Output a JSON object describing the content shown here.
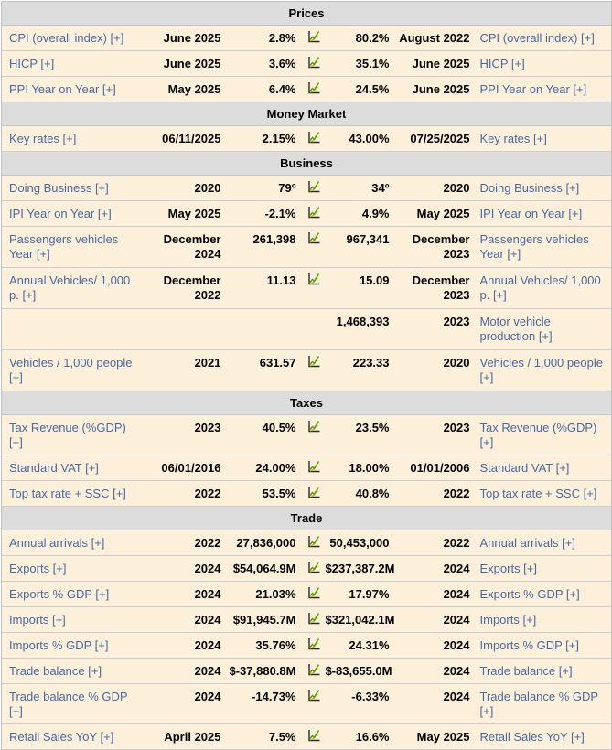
{
  "meta": {
    "columns": [
      "metric-left",
      "date-left",
      "value-left",
      "chart-icon",
      "value-right",
      "date-right",
      "metric-right"
    ],
    "colors": {
      "row_background": "#fcf0da",
      "section_background": "#dcdcdc",
      "border": "#c8c8c8",
      "link": "#4a68a1",
      "icon_axis": "#2b2b2b",
      "icon_line_green": "#55a018",
      "icon_line_yellow": "#d2be2a"
    },
    "chart_icon": "line-chart-icon"
  },
  "table": {
    "sections": [
      {
        "title": "Prices",
        "rows": [
          {
            "label_left": "CPI (overall index) [+]",
            "date_left": "June 2025",
            "value_left": "2.8%",
            "icon": true,
            "value_right": "80.2%",
            "date_right": "August 2022",
            "label_right": "CPI (overall index) [+]"
          },
          {
            "label_left": "HICP [+]",
            "date_left": "June 2025",
            "value_left": "3.6%",
            "icon": true,
            "value_right": "35.1%",
            "date_right": "June 2025",
            "label_right": "HICP [+]"
          },
          {
            "label_left": "PPI Year on Year [+]",
            "date_left": "May 2025",
            "value_left": "6.4%",
            "icon": true,
            "value_right": "24.5%",
            "date_right": "June 2025",
            "label_right": "PPI Year on Year [+]"
          }
        ]
      },
      {
        "title": "Money Market",
        "rows": [
          {
            "label_left": "Key rates [+]",
            "date_left": "06/11/2025",
            "value_left": "2.15%",
            "icon": true,
            "value_right": "43.00%",
            "date_right": "07/25/2025",
            "label_right": "Key rates [+]"
          }
        ]
      },
      {
        "title": "Business",
        "rows": [
          {
            "label_left": "Doing Business [+]",
            "date_left": "2020",
            "value_left": "79º",
            "icon": true,
            "value_right": "34º",
            "date_right": "2020",
            "label_right": "Doing Business [+]"
          },
          {
            "label_left": "IPI Year on Year [+]",
            "date_left": "May 2025",
            "value_left": "-2.1%",
            "icon": true,
            "value_right": "4.9%",
            "date_right": "May 2025",
            "label_right": "IPI Year on Year [+]"
          },
          {
            "label_left": "Passengers vehicles Year [+]",
            "date_left": "December 2024",
            "value_left": "261,398",
            "icon": true,
            "value_right": "967,341",
            "date_right": "December 2023",
            "label_right": "Passengers vehicles Year [+]",
            "tall": true
          },
          {
            "label_left": "Annual Vehicles/ 1,000 p. [+]",
            "date_left": "December 2022",
            "value_left": "11.13",
            "icon": true,
            "value_right": "15.09",
            "date_right": "December 2023",
            "label_right": "Annual Vehicles/ 1,000 p. [+]",
            "tall": true
          },
          {
            "label_left": "",
            "date_left": "",
            "value_left": "",
            "icon": false,
            "value_right": "1,468,393",
            "date_right": "2023",
            "label_right": "Motor vehicle production [+]",
            "tall": true
          },
          {
            "label_left": "Vehicles / 1,000 people [+]",
            "date_left": "2021",
            "value_left": "631.57",
            "icon": true,
            "value_right": "223.33",
            "date_right": "2020",
            "label_right": "Vehicles / 1,000 people [+]",
            "tall": true
          }
        ]
      },
      {
        "title": "Taxes",
        "rows": [
          {
            "label_left": "Tax Revenue (%GDP) [+]",
            "date_left": "2023",
            "value_left": "40.5%",
            "icon": true,
            "value_right": "23.5%",
            "date_right": "2023",
            "label_right": "Tax Revenue (%GDP) [+]"
          },
          {
            "label_left": "Standard VAT [+]",
            "date_left": "06/01/2016",
            "value_left": "24.00%",
            "icon": true,
            "value_right": "18.00%",
            "date_right": "01/01/2006",
            "label_right": "Standard VAT [+]"
          },
          {
            "label_left": "Top tax rate + SSC [+]",
            "date_left": "2022",
            "value_left": "53.5%",
            "icon": true,
            "value_right": "40.8%",
            "date_right": "2022",
            "label_right": "Top tax rate + SSC [+]"
          }
        ]
      },
      {
        "title": "Trade",
        "rows": [
          {
            "label_left": "Annual arrivals [+]",
            "date_left": "2022",
            "value_left": "27,836,000",
            "icon": true,
            "value_right": "50,453,000",
            "date_right": "2022",
            "label_right": "Annual arrivals [+]"
          },
          {
            "label_left": "Exports [+]",
            "date_left": "2024",
            "value_left": "$54,064.9M",
            "icon": true,
            "value_right": "$237,387.2M",
            "date_right": "2024",
            "label_right": "Exports [+]"
          },
          {
            "label_left": "Exports % GDP [+]",
            "date_left": "2024",
            "value_left": "21.03%",
            "icon": true,
            "value_right": "17.97%",
            "date_right": "2024",
            "label_right": "Exports % GDP [+]"
          },
          {
            "label_left": "Imports [+]",
            "date_left": "2024",
            "value_left": "$91,945.7M",
            "icon": true,
            "value_right": "$321,042.1M",
            "date_right": "2024",
            "label_right": "Imports [+]"
          },
          {
            "label_left": "Imports % GDP [+]",
            "date_left": "2024",
            "value_left": "35.76%",
            "icon": true,
            "value_right": "24.31%",
            "date_right": "2024",
            "label_right": "Imports % GDP [+]"
          },
          {
            "label_left": "Trade balance [+]",
            "date_left": "2024",
            "value_left": "$-37,880.8M",
            "icon": true,
            "value_right": "$-83,655.0M",
            "date_right": "2024",
            "label_right": "Trade balance [+]"
          },
          {
            "label_left": "Trade balance % GDP [+]",
            "date_left": "2024",
            "value_left": "-14.73%",
            "icon": true,
            "value_right": "-6.33%",
            "date_right": "2024",
            "label_right": "Trade balance % GDP [+]"
          },
          {
            "label_left": "Retail Sales YoY [+]",
            "date_left": "April 2025",
            "value_left": "7.5%",
            "icon": true,
            "value_right": "16.6%",
            "date_right": "May 2025",
            "label_right": "Retail Sales YoY [+]"
          }
        ]
      }
    ]
  }
}
